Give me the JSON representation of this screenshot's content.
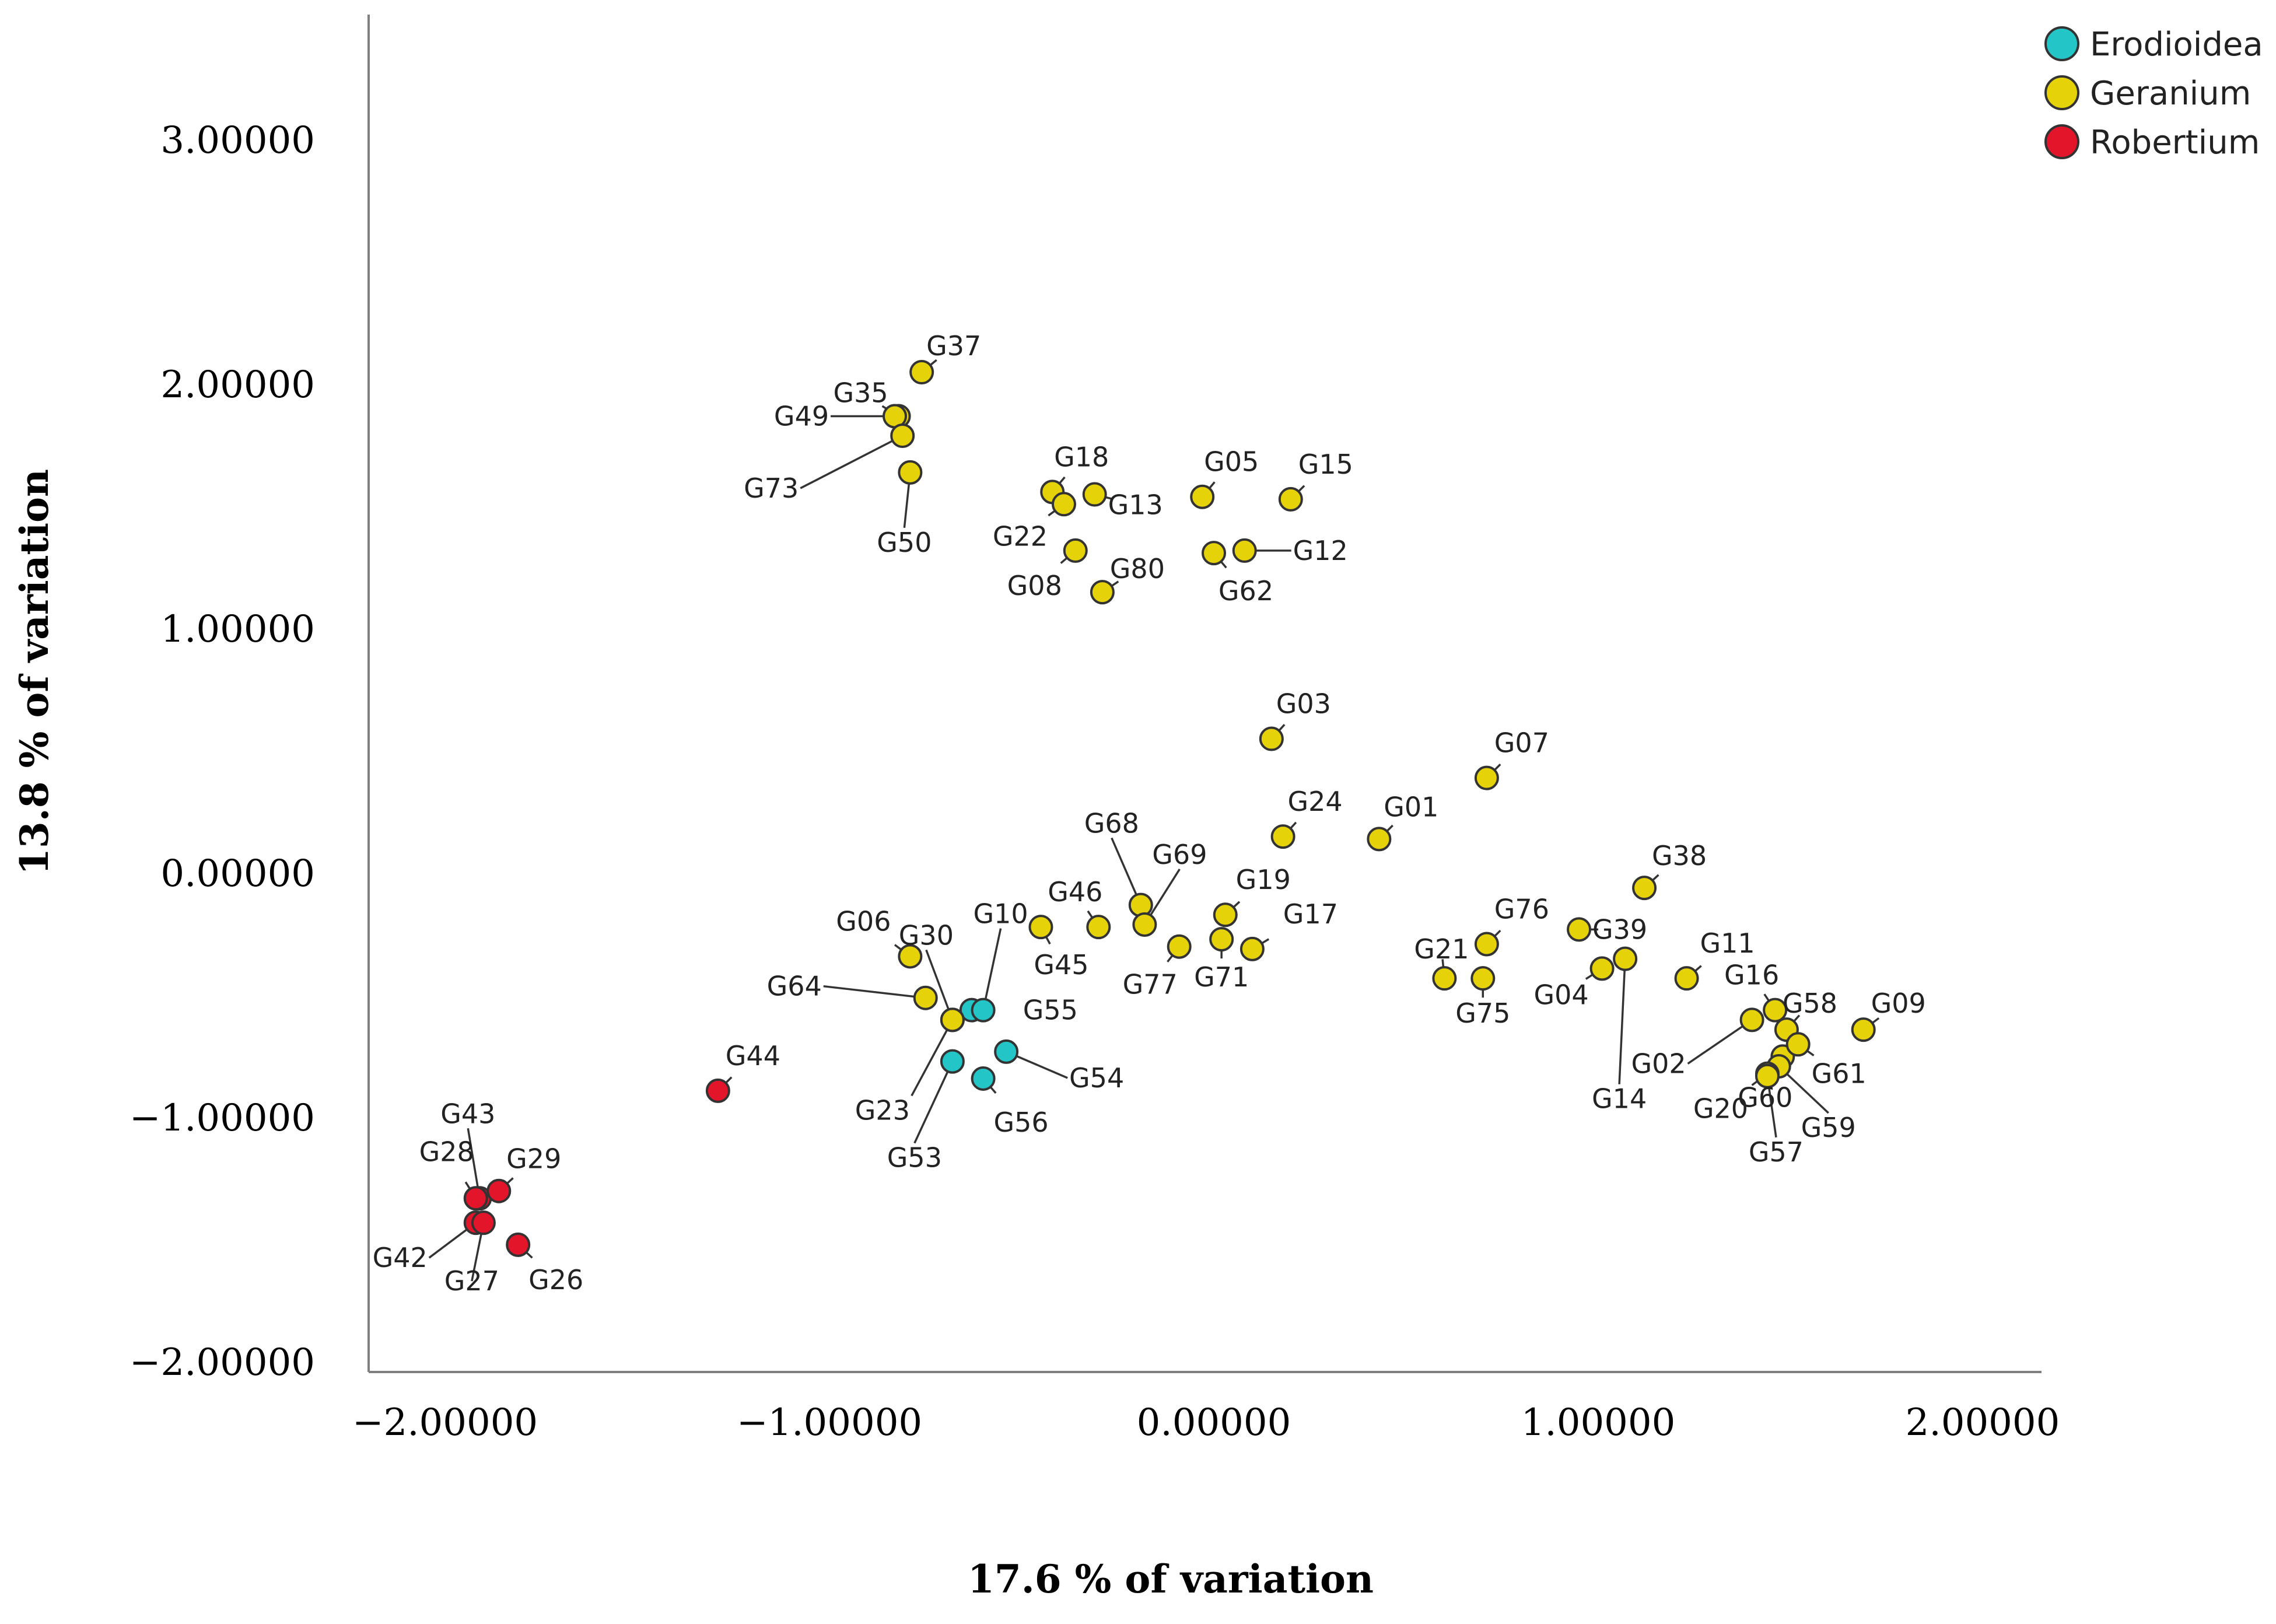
{
  "chart_data": {
    "type": "scatter",
    "title": "",
    "xlabel": "17.6 % of variation",
    "ylabel": "13.8 % of variation",
    "xlim": [
      -2.25,
      2.25
    ],
    "ylim": [
      -2.05,
      3.5
    ],
    "x_ticks": [
      -2,
      -1,
      0,
      1,
      2
    ],
    "x_tick_labels": [
      "−2.00000",
      "−1.00000",
      "0.00000",
      "1.00000",
      "2.00000"
    ],
    "y_ticks": [
      -2,
      -1,
      0,
      1,
      2,
      3
    ],
    "y_tick_labels": [
      "−2.00000",
      "−1.00000",
      "0.00000",
      "1.00000",
      "2.00000",
      "3.00000"
    ],
    "grid": false,
    "legend_position": "top-right",
    "series": [
      {
        "name": "Erodioidea",
        "color": "#23c5c6",
        "points": [
          {
            "label": "G55",
            "x": -0.63,
            "y": -0.56
          },
          {
            "label": "G10",
            "x": -0.6,
            "y": -0.56
          },
          {
            "label": "G54",
            "x": -0.54,
            "y": -0.73
          },
          {
            "label": "G53",
            "x": -0.68,
            "y": -0.77
          },
          {
            "label": "G56",
            "x": -0.6,
            "y": -0.84
          }
        ]
      },
      {
        "name": "Geranium",
        "color": "#e6d208",
        "points": [
          {
            "label": "G37",
            "x": -0.76,
            "y": 2.05
          },
          {
            "label": "G35",
            "x": -0.82,
            "y": 1.87
          },
          {
            "label": "G49",
            "x": -0.83,
            "y": 1.87
          },
          {
            "label": "G73",
            "x": -0.81,
            "y": 1.79
          },
          {
            "label": "G50",
            "x": -0.79,
            "y": 1.64
          },
          {
            "label": "G18",
            "x": -0.42,
            "y": 1.56
          },
          {
            "label": "G22",
            "x": -0.39,
            "y": 1.51
          },
          {
            "label": "G13",
            "x": -0.31,
            "y": 1.55
          },
          {
            "label": "G08",
            "x": -0.36,
            "y": 1.32
          },
          {
            "label": "G80",
            "x": -0.29,
            "y": 1.15
          },
          {
            "label": "G05",
            "x": -0.03,
            "y": 1.54
          },
          {
            "label": "G15",
            "x": 0.2,
            "y": 1.53
          },
          {
            "label": "G62",
            "x": 0.0,
            "y": 1.31
          },
          {
            "label": "G12",
            "x": 0.08,
            "y": 1.32
          },
          {
            "label": "G03",
            "x": 0.15,
            "y": 0.55
          },
          {
            "label": "G07",
            "x": 0.71,
            "y": 0.39
          },
          {
            "label": "G24",
            "x": 0.18,
            "y": 0.15
          },
          {
            "label": "G01",
            "x": 0.43,
            "y": 0.14
          },
          {
            "label": "G68",
            "x": -0.19,
            "y": -0.13
          },
          {
            "label": "G69",
            "x": -0.18,
            "y": -0.21
          },
          {
            "label": "G19",
            "x": 0.03,
            "y": -0.17
          },
          {
            "label": "G46",
            "x": -0.3,
            "y": -0.22
          },
          {
            "label": "G45",
            "x": -0.45,
            "y": -0.22
          },
          {
            "label": "G77",
            "x": -0.09,
            "y": -0.3
          },
          {
            "label": "G71",
            "x": 0.02,
            "y": -0.27
          },
          {
            "label": "G17",
            "x": 0.1,
            "y": -0.31
          },
          {
            "label": "G06",
            "x": -0.79,
            "y": -0.34
          },
          {
            "label": "G64",
            "x": -0.75,
            "y": -0.51
          },
          {
            "label": "G30",
            "x": -0.68,
            "y": -0.6
          },
          {
            "label": "G23",
            "x": -0.68,
            "y": -0.6
          },
          {
            "label": "G38",
            "x": 1.12,
            "y": -0.06
          },
          {
            "label": "G76",
            "x": 0.71,
            "y": -0.29
          },
          {
            "label": "G39",
            "x": 0.95,
            "y": -0.23
          },
          {
            "label": "G21",
            "x": 0.6,
            "y": -0.43
          },
          {
            "label": "G75",
            "x": 0.7,
            "y": -0.43
          },
          {
            "label": "G04",
            "x": 1.01,
            "y": -0.39
          },
          {
            "label": "G14",
            "x": 1.07,
            "y": -0.35
          },
          {
            "label": "G11",
            "x": 1.23,
            "y": -0.43
          },
          {
            "label": "G16",
            "x": 1.46,
            "y": -0.56
          },
          {
            "label": "G02",
            "x": 1.4,
            "y": -0.6
          },
          {
            "label": "G58",
            "x": 1.49,
            "y": -0.64
          },
          {
            "label": "G09",
            "x": 1.69,
            "y": -0.64
          },
          {
            "label": "G60",
            "x": 1.48,
            "y": -0.75
          },
          {
            "label": "G61",
            "x": 1.52,
            "y": -0.7
          },
          {
            "label": "G59",
            "x": 1.47,
            "y": -0.79
          },
          {
            "label": "G20",
            "x": 1.44,
            "y": -0.82
          },
          {
            "label": "G57",
            "x": 1.44,
            "y": -0.83
          }
        ]
      },
      {
        "name": "Robertium",
        "color": "#e3152b",
        "points": [
          {
            "label": "G44",
            "x": -1.29,
            "y": -0.89
          },
          {
            "label": "G43",
            "x": -1.91,
            "y": -1.33
          },
          {
            "label": "G28",
            "x": -1.92,
            "y": -1.33
          },
          {
            "label": "G29",
            "x": -1.86,
            "y": -1.3
          },
          {
            "label": "G42",
            "x": -1.92,
            "y": -1.43
          },
          {
            "label": "G27",
            "x": -1.9,
            "y": -1.43
          },
          {
            "label": "G26",
            "x": -1.81,
            "y": -1.52
          }
        ]
      }
    ]
  }
}
